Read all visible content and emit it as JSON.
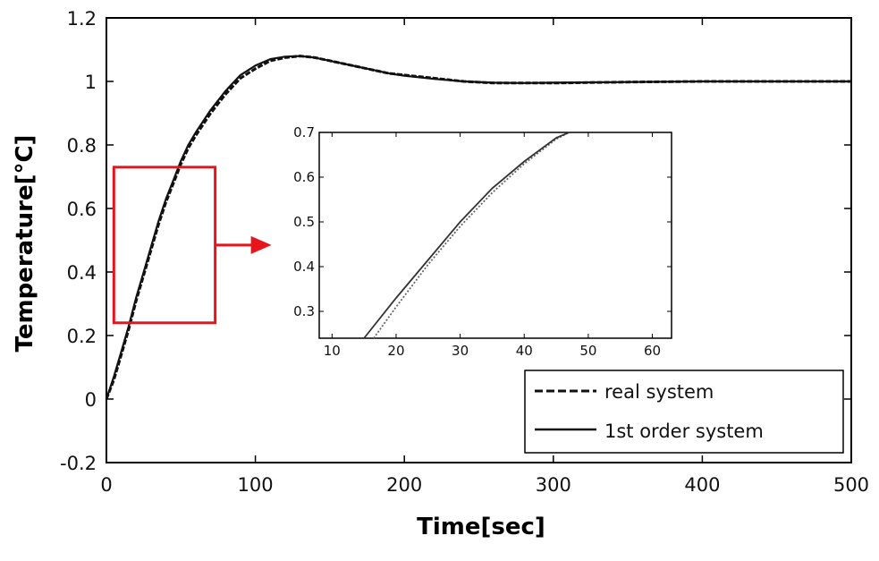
{
  "chart_data": [
    {
      "type": "line",
      "xlabel": "Time[sec]",
      "ylabel": "Temperature[°C]",
      "xlim": [
        0,
        500
      ],
      "ylim": [
        -0.2,
        1.2
      ],
      "xticks": [
        "0",
        "100",
        "200",
        "300",
        "400",
        "500"
      ],
      "yticks": [
        "-0.2",
        "0",
        "0.2",
        "0.4",
        "0.6",
        "0.8",
        "1",
        "1.2"
      ],
      "grid": false,
      "legend_position": "bottom-right",
      "series": [
        {
          "name": "real system",
          "style": "dashed",
          "color": "#111111",
          "x": [
            0,
            5,
            10,
            15,
            20,
            25,
            30,
            35,
            40,
            45,
            50,
            55,
            60,
            70,
            80,
            90,
            100,
            110,
            120,
            130,
            140,
            150,
            160,
            170,
            180,
            190,
            200,
            220,
            240,
            260,
            280,
            300,
            350,
            400,
            450,
            500
          ],
          "y": [
            0.0,
            0.06,
            0.14,
            0.22,
            0.31,
            0.39,
            0.47,
            0.55,
            0.62,
            0.68,
            0.74,
            0.79,
            0.83,
            0.9,
            0.96,
            1.01,
            1.04,
            1.065,
            1.075,
            1.08,
            1.075,
            1.065,
            1.055,
            1.045,
            1.035,
            1.025,
            1.02,
            1.01,
            1.0,
            0.995,
            0.995,
            0.995,
            0.998,
            1.0,
            1.0,
            1.0
          ]
        },
        {
          "name": "1st order system",
          "style": "solid",
          "color": "#111111",
          "x": [
            0,
            5,
            10,
            15,
            20,
            25,
            30,
            35,
            40,
            45,
            50,
            55,
            60,
            70,
            80,
            90,
            100,
            110,
            120,
            130,
            140,
            150,
            160,
            170,
            180,
            190,
            200,
            220,
            240,
            260,
            280,
            300,
            350,
            400,
            450,
            500
          ],
          "y": [
            0.0,
            0.07,
            0.15,
            0.23,
            0.32,
            0.4,
            0.48,
            0.56,
            0.63,
            0.69,
            0.75,
            0.8,
            0.84,
            0.91,
            0.97,
            1.02,
            1.05,
            1.07,
            1.078,
            1.08,
            1.075,
            1.065,
            1.055,
            1.045,
            1.035,
            1.025,
            1.018,
            1.008,
            1.0,
            0.996,
            0.995,
            0.996,
            0.998,
            1.0,
            1.0,
            1.0
          ]
        }
      ],
      "highlight_box": {
        "x_range": [
          5,
          73
        ],
        "y_range": [
          0.24,
          0.73
        ],
        "color": "#e8141c"
      }
    },
    {
      "type": "line",
      "inset": true,
      "xlim": [
        8,
        63
      ],
      "ylim": [
        0.24,
        0.7
      ],
      "xticks": [
        "10",
        "20",
        "30",
        "40",
        "50",
        "60"
      ],
      "yticks": [
        "0.3",
        "0.4",
        "0.5",
        "0.6",
        "0.7"
      ],
      "series": [
        {
          "name": "real system",
          "style": "dotted",
          "color": "#666666",
          "x": [
            16.5,
            20,
            25,
            30,
            35,
            40,
            45,
            47
          ],
          "y": [
            0.24,
            0.31,
            0.405,
            0.49,
            0.565,
            0.63,
            0.685,
            0.7
          ]
        },
        {
          "name": "1st order system",
          "style": "solid",
          "color": "#333333",
          "x": [
            15,
            20,
            25,
            30,
            35,
            40,
            45,
            47
          ],
          "y": [
            0.24,
            0.33,
            0.415,
            0.5,
            0.575,
            0.635,
            0.688,
            0.7
          ]
        }
      ]
    }
  ]
}
